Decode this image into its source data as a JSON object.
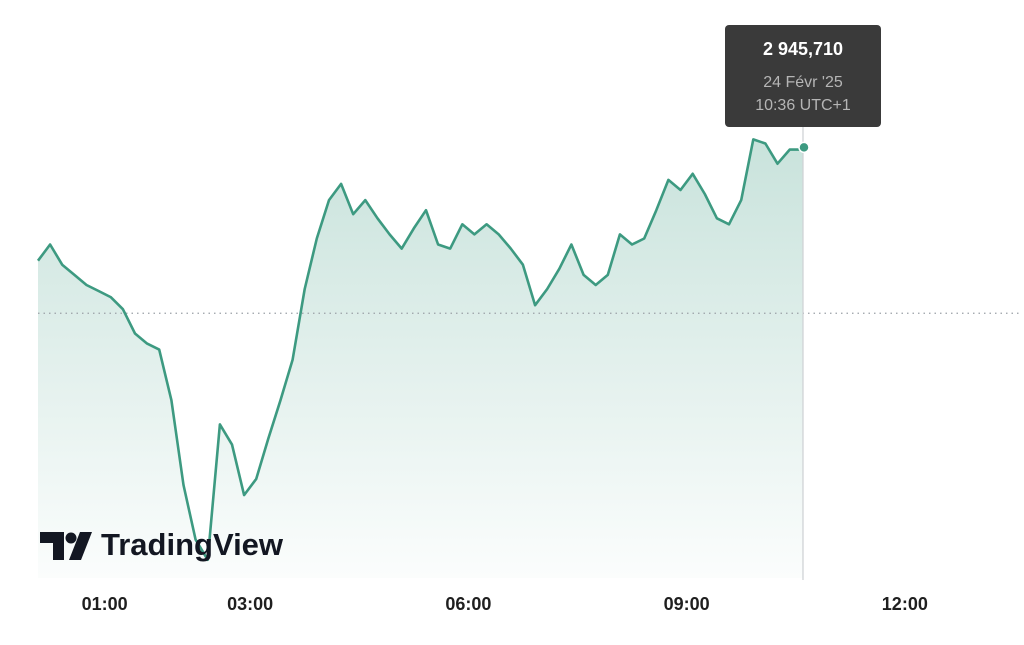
{
  "chart_data": {
    "type": "area",
    "x": [
      "00:05",
      "00:15",
      "00:25",
      "00:35",
      "00:45",
      "00:55",
      "01:05",
      "01:15",
      "01:25",
      "01:35",
      "01:45",
      "01:55",
      "02:05",
      "02:15",
      "02:25",
      "02:35",
      "02:45",
      "02:55",
      "03:05",
      "03:15",
      "03:25",
      "03:35",
      "03:45",
      "03:55",
      "04:05",
      "04:15",
      "04:25",
      "04:35",
      "04:45",
      "04:55",
      "05:05",
      "05:15",
      "05:25",
      "05:35",
      "05:45",
      "05:55",
      "06:05",
      "06:15",
      "06:25",
      "06:35",
      "06:45",
      "06:55",
      "07:05",
      "07:15",
      "07:25",
      "07:35",
      "07:45",
      "07:55",
      "08:05",
      "08:15",
      "08:25",
      "08:35",
      "08:45",
      "08:55",
      "09:05",
      "09:15",
      "09:25",
      "09:35",
      "09:45",
      "09:55",
      "10:05",
      "10:15",
      "10:25",
      "10:35",
      "10:36"
    ],
    "values": [
      2940.1,
      2940.9,
      2939.9,
      2939.4,
      2938.9,
      2938.6,
      2938.3,
      2937.7,
      2936.5,
      2936.0,
      2935.7,
      2933.2,
      2929.0,
      2926.3,
      2925.3,
      2932.0,
      2931.0,
      2928.5,
      2929.3,
      2931.3,
      2933.2,
      2935.2,
      2938.7,
      2941.2,
      2943.1,
      2943.9,
      2942.4,
      2943.1,
      2942.2,
      2941.4,
      2940.7,
      2941.7,
      2942.6,
      2940.9,
      2940.7,
      2941.9,
      2941.4,
      2941.9,
      2941.4,
      2940.7,
      2939.9,
      2937.9,
      2938.7,
      2939.7,
      2940.9,
      2939.4,
      2938.9,
      2939.4,
      2941.4,
      2940.9,
      2941.2,
      2942.6,
      2944.1,
      2943.6,
      2944.4,
      2943.4,
      2942.2,
      2941.9,
      2943.1,
      2946.1,
      2945.9,
      2944.9,
      2945.6,
      2945.6,
      2945.71
    ],
    "color": "#3d9a81",
    "xlim": [
      "00:05",
      "13:35"
    ],
    "xticks": [
      "01:00",
      "03:00",
      "06:00",
      "09:00",
      "12:00"
    ],
    "ylim": [
      2924.4,
      2953.0
    ],
    "baseline": 2937.5,
    "tooltip": {
      "value": 2945.71,
      "label": "2 945,710",
      "date": "24 Févr '25",
      "time": "10:36 UTC+1"
    },
    "watermark": "TradingView"
  }
}
